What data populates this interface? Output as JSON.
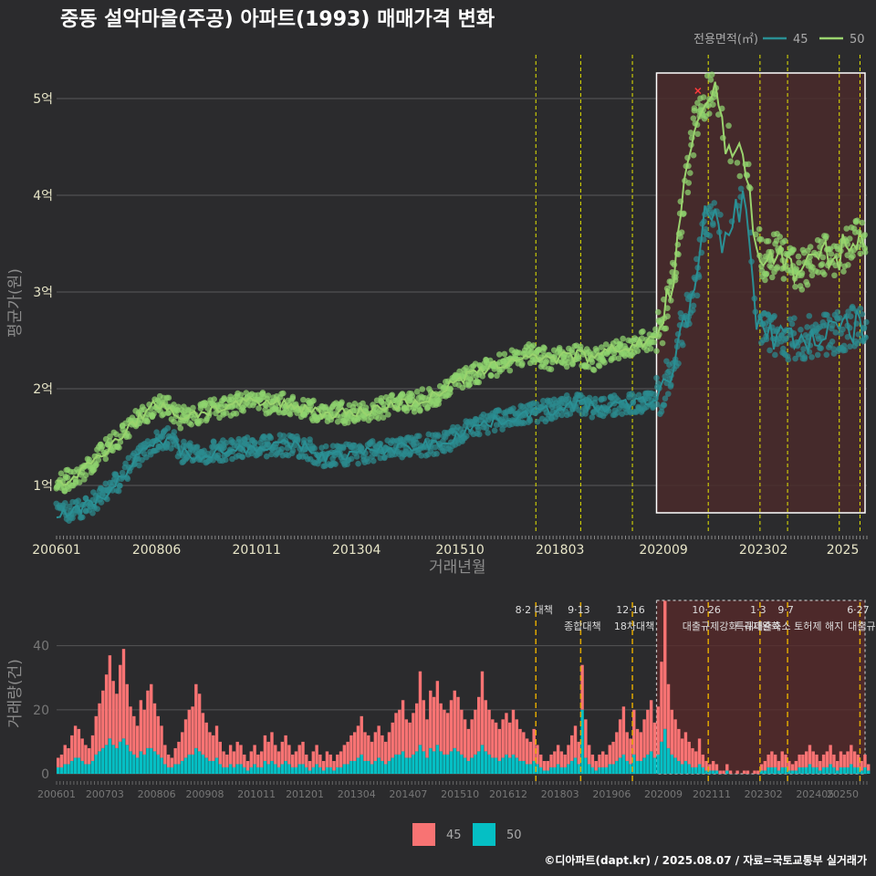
{
  "title": "중동 설악마을(주공) 아파트(1993) 매매가격 변화",
  "credit": "©디아파트(dapt.kr) / 2025.08.07 / 자료=국토교통부 실거래가",
  "legend": {
    "title": "전용면적(㎡)",
    "items": [
      "45",
      "50"
    ]
  },
  "colors": {
    "s45_line": "#2a8f94",
    "s45_point": "#2b8a8f",
    "s50_line": "#9ad36e",
    "s50_point": "#8fd46f",
    "bar45": "#f87373",
    "bar50": "#05bfc4",
    "highlight": "#4a2a2c",
    "policy_line": "#e5e600",
    "policy_line_bottom": "#e0a800"
  },
  "chart_data": [
    {
      "type": "line",
      "title": "중동 설악마을(주공) 아파트(1993) 매매가격 변화",
      "xlabel": "거래년월",
      "ylabel": "평균가(원)",
      "x_range": [
        "2006-01",
        "2025-08"
      ],
      "ylim": [
        0.5,
        5.5
      ],
      "y_ticks": [
        1,
        2,
        3,
        4,
        5
      ],
      "y_tick_labels": [
        "1억",
        "2억",
        "3억",
        "4억",
        "5억"
      ],
      "x_tick_labels": [
        "200601",
        "200806",
        "201011",
        "201304",
        "201510",
        "201803",
        "202009",
        "202302",
        "2025"
      ],
      "grid": true,
      "legend_position": "top-right",
      "highlight_range": [
        "2020-07",
        "2025-08"
      ],
      "policy_dates": [
        "2017-08",
        "2018-09",
        "2019-12",
        "2021-10",
        "2023-01",
        "2023-09",
        "2024-12",
        "2025-06"
      ],
      "peak_marker": "2021-07",
      "series": [
        {
          "name": "45",
          "x": [
            "2006-01",
            "2006-07",
            "2007-01",
            "2007-07",
            "2008-01",
            "2008-06",
            "2008-10",
            "2009-01",
            "2009-06",
            "2010-01",
            "2010-06",
            "2010-11",
            "2011-06",
            "2012-01",
            "2012-06",
            "2013-01",
            "2013-04",
            "2013-10",
            "2014-06",
            "2015-01",
            "2015-06",
            "2015-10",
            "2016-06",
            "2017-01",
            "2017-06",
            "2018-01",
            "2018-03",
            "2018-09",
            "2019-01",
            "2019-06",
            "2020-01",
            "2020-07",
            "2020-09",
            "2020-12",
            "2021-03",
            "2021-06",
            "2021-09",
            "2021-12",
            "2022-03",
            "2022-06",
            "2022-09",
            "2022-12",
            "2023-02",
            "2023-06",
            "2023-12",
            "2024-06",
            "2024-12",
            "2025-06",
            "2025-08"
          ],
          "y": [
            0.72,
            0.74,
            0.85,
            1.05,
            1.3,
            1.45,
            1.5,
            1.35,
            1.32,
            1.36,
            1.38,
            1.4,
            1.42,
            1.4,
            1.3,
            1.32,
            1.33,
            1.36,
            1.4,
            1.42,
            1.45,
            1.55,
            1.65,
            1.7,
            1.75,
            1.78,
            1.82,
            1.85,
            1.8,
            1.82,
            1.85,
            1.9,
            1.95,
            2.3,
            2.7,
            3.0,
            3.75,
            3.7,
            3.5,
            3.85,
            3.95,
            2.7,
            2.6,
            2.55,
            2.5,
            2.55,
            2.6,
            2.65,
            2.6
          ]
        },
        {
          "name": "50",
          "x": [
            "2006-01",
            "2006-07",
            "2007-01",
            "2007-07",
            "2008-01",
            "2008-06",
            "2008-10",
            "2009-01",
            "2009-06",
            "2010-01",
            "2010-06",
            "2010-11",
            "2011-06",
            "2012-01",
            "2012-06",
            "2013-01",
            "2013-04",
            "2013-10",
            "2014-06",
            "2015-01",
            "2015-06",
            "2015-10",
            "2016-06",
            "2017-01",
            "2017-06",
            "2018-01",
            "2018-03",
            "2018-09",
            "2019-01",
            "2019-06",
            "2020-01",
            "2020-07",
            "2020-09",
            "2020-12",
            "2021-03",
            "2021-06",
            "2021-09",
            "2021-12",
            "2022-03",
            "2022-06",
            "2022-09",
            "2022-12",
            "2023-02",
            "2023-06",
            "2023-12",
            "2024-06",
            "2024-12",
            "2025-06",
            "2025-08"
          ],
          "y": [
            1.0,
            1.1,
            1.3,
            1.5,
            1.7,
            1.85,
            1.8,
            1.7,
            1.75,
            1.8,
            1.85,
            1.85,
            1.85,
            1.8,
            1.75,
            1.75,
            1.75,
            1.8,
            1.85,
            1.9,
            2.0,
            2.1,
            2.2,
            2.3,
            2.35,
            2.3,
            2.32,
            2.35,
            2.3,
            2.4,
            2.45,
            2.55,
            2.7,
            3.2,
            4.0,
            4.7,
            5.0,
            5.1,
            4.6,
            4.4,
            4.3,
            3.5,
            3.3,
            3.4,
            3.2,
            3.35,
            3.4,
            3.55,
            3.6
          ]
        }
      ]
    },
    {
      "type": "bar",
      "stacked": true,
      "ylabel": "거래량(건)",
      "ylim": [
        0,
        55
      ],
      "y_ticks": [
        0,
        20,
        40
      ],
      "x_tick_labels": [
        "200601",
        "200703",
        "200806",
        "200908",
        "201011",
        "201201",
        "201304",
        "201407",
        "201510",
        "201612",
        "201803",
        "201906",
        "202009",
        "202111",
        "202302",
        "202405",
        "20250"
      ],
      "highlight_range": [
        "2020-07",
        "2025-08"
      ],
      "series": [
        {
          "name": "45",
          "monthly_by_year": {
            "2006": [
              3,
              4,
              6,
              5,
              8,
              10,
              9,
              7,
              6,
              5,
              8,
              12
            ],
            "2007": [
              15,
              18,
              22,
              26,
              20,
              17,
              24,
              28,
              19,
              14,
              12,
              10
            ],
            "2008": [
              16,
              14,
              18,
              20,
              15,
              12,
              10,
              6,
              4,
              3,
              5,
              7
            ],
            "2009": [
              9,
              12,
              14,
              15,
              20,
              18,
              13,
              11,
              9,
              8,
              10,
              7
            ],
            "2010": [
              5,
              4,
              6,
              5,
              7,
              6,
              4,
              3,
              5,
              6,
              4,
              5
            ],
            "2011": [
              8,
              7,
              9,
              6,
              5,
              7,
              8,
              6,
              4,
              5,
              6,
              7
            ],
            "2012": [
              4,
              3,
              5,
              6,
              4,
              3,
              5,
              4,
              3,
              4,
              5,
              6
            ],
            "2013": [
              7,
              8,
              9,
              10,
              12,
              9,
              8,
              7,
              9,
              10,
              8,
              7
            ],
            "2014": [
              9,
              11,
              13,
              14,
              16,
              12,
              11,
              13,
              15,
              23,
              16,
              12
            ],
            "2015": [
              18,
              17,
              20,
              15,
              14,
              13,
              16,
              18,
              17,
              14,
              12,
              10
            ],
            "2016": [
              12,
              14,
              17,
              23,
              16,
              14,
              12,
              11,
              10,
              12,
              13,
              11
            ],
            "2017": [
              14,
              12,
              10,
              9,
              8,
              7,
              10,
              6,
              4,
              3,
              3,
              4
            ],
            "2018": [
              5,
              6,
              5,
              4,
              6,
              8,
              10,
              7,
              14,
              12,
              6,
              4
            ],
            "2019": [
              3,
              4,
              5,
              4,
              6,
              7,
              9,
              12,
              15,
              9,
              8,
              14
            ],
            "2020": [
              10,
              9,
              12,
              14,
              16,
              11,
              15,
              25,
              40,
              20,
              14,
              12
            ],
            "2021": [
              10,
              8,
              9,
              7,
              6,
              5,
              8,
              4,
              3,
              2,
              3,
              2
            ],
            "2022": [
              1,
              1,
              2,
              1,
              0,
              1,
              0,
              1,
              1,
              0,
              1,
              1
            ],
            "2023": [
              2,
              3,
              4,
              5,
              4,
              3,
              5,
              4,
              3,
              2,
              3,
              4
            ],
            "2024": [
              4,
              5,
              6,
              5,
              4,
              3,
              4,
              5,
              6,
              4,
              3,
              5
            ],
            "2025": [
              4,
              5,
              6,
              5,
              4,
              3,
              4,
              2
            ]
          }
        },
        {
          "name": "50",
          "monthly_by_year": {
            "2006": [
              2,
              2,
              3,
              3,
              4,
              5,
              5,
              4,
              3,
              3,
              4,
              6
            ],
            "2007": [
              7,
              8,
              9,
              11,
              9,
              8,
              10,
              11,
              9,
              7,
              6,
              5
            ],
            "2008": [
              7,
              6,
              8,
              8,
              7,
              6,
              5,
              3,
              2,
              2,
              3,
              3
            ],
            "2009": [
              4,
              5,
              6,
              6,
              8,
              7,
              6,
              5,
              4,
              4,
              5,
              3
            ],
            "2010": [
              2,
              2,
              3,
              2,
              3,
              3,
              2,
              1,
              2,
              3,
              2,
              2
            ],
            "2011": [
              4,
              3,
              4,
              3,
              2,
              3,
              4,
              3,
              2,
              2,
              3,
              3
            ],
            "2012": [
              2,
              1,
              2,
              3,
              2,
              1,
              2,
              2,
              1,
              2,
              2,
              3
            ],
            "2013": [
              3,
              4,
              4,
              5,
              6,
              4,
              4,
              3,
              4,
              5,
              4,
              3
            ],
            "2014": [
              4,
              5,
              6,
              6,
              7,
              5,
              5,
              6,
              7,
              9,
              7,
              5
            ],
            "2015": [
              8,
              7,
              9,
              7,
              6,
              6,
              7,
              8,
              7,
              6,
              5,
              4
            ],
            "2016": [
              5,
              6,
              7,
              9,
              7,
              6,
              5,
              5,
              4,
              5,
              6,
              5
            ],
            "2017": [
              6,
              5,
              4,
              4,
              3,
              3,
              4,
              3,
              2,
              1,
              1,
              2
            ],
            "2018": [
              2,
              3,
              2,
              2,
              3,
              4,
              5,
              3,
              20,
              5,
              3,
              2
            ],
            "2019": [
              1,
              2,
              2,
              2,
              3,
              3,
              4,
              5,
              6,
              4,
              3,
              6
            ],
            "2020": [
              4,
              4,
              5,
              6,
              7,
              5,
              6,
              10,
              14,
              8,
              6,
              5
            ],
            "2021": [
              4,
              3,
              4,
              3,
              2,
              2,
              3,
              2,
              1,
              1,
              1,
              1
            ],
            "2022": [
              0,
              0,
              1,
              0,
              0,
              0,
              0,
              0,
              0,
              0,
              0,
              0
            ],
            "2023": [
              1,
              1,
              2,
              2,
              2,
              1,
              2,
              2,
              1,
              1,
              1,
              2
            ],
            "2024": [
              2,
              2,
              3,
              2,
              2,
              1,
              2,
              2,
              3,
              2,
              1,
              2
            ],
            "2025": [
              2,
              2,
              3,
              2,
              2,
              1,
              2,
              1
            ]
          }
        }
      ],
      "policy_events": [
        {
          "date": "2017-08",
          "label": "8·2 대책",
          "label2": ""
        },
        {
          "date": "2018-09",
          "label": "9·13",
          "label2": "종합대책"
        },
        {
          "date": "2019-12",
          "label": "12·16",
          "label2": "18차대책"
        },
        {
          "date": "2021-10",
          "label": "10·26",
          "label2": "대출규제강화"
        },
        {
          "date": "2023-01",
          "label": "1·3",
          "label2": "규제완화"
        },
        {
          "date": "2023-09",
          "label": "9·7",
          "label2": "특례대출축소 토허제 해지"
        },
        {
          "date": "2025-06",
          "label": "6·27",
          "label2": "대출규"
        }
      ]
    }
  ]
}
